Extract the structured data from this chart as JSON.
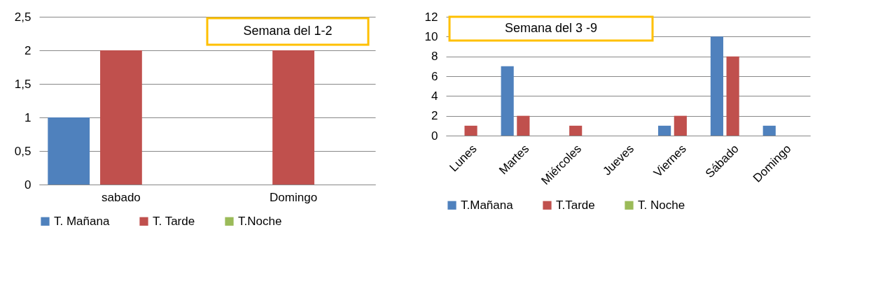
{
  "chart_data": [
    {
      "type": "bar",
      "title": "Semana del 1-2",
      "categories": [
        "sabado",
        "Domingo"
      ],
      "series": [
        {
          "name": "T. Mañana",
          "color": "#4f81bd",
          "values": [
            1,
            0
          ]
        },
        {
          "name": "T. Tarde",
          "color": "#c0504d",
          "values": [
            2,
            2
          ]
        },
        {
          "name": "T.Noche",
          "color": "#9bbb59",
          "values": [
            0,
            0
          ]
        }
      ],
      "ylim": [
        0,
        2.5
      ],
      "yticks": [
        0,
        {
          "value": 0.5,
          "label": "0,5"
        },
        1,
        {
          "value": 1.5,
          "label": "1,5"
        },
        2,
        {
          "value": 2.5,
          "label": "2,5"
        }
      ],
      "grid": "y",
      "legend": "bottom"
    },
    {
      "type": "bar",
      "title": "Semana del  3 -9",
      "categories": [
        "Lunes",
        "Martes",
        "Miércoles",
        "Jueves",
        "Viernes",
        "Sábado",
        "Domingo"
      ],
      "series": [
        {
          "name": "T.Mañana",
          "color": "#4f81bd",
          "values": [
            0,
            7,
            0,
            0,
            1,
            10,
            1
          ]
        },
        {
          "name": "T.Tarde",
          "color": "#c0504d",
          "values": [
            1,
            2,
            1,
            0,
            2,
            8,
            0
          ]
        },
        {
          "name": "T. Noche",
          "color": "#9bbb59",
          "values": [
            0,
            0,
            0,
            0,
            0,
            0,
            0
          ]
        }
      ],
      "ylim": [
        0,
        12
      ],
      "yticks": [
        0,
        2,
        4,
        6,
        8,
        10,
        12
      ],
      "grid": "y",
      "legend": "bottom"
    }
  ]
}
